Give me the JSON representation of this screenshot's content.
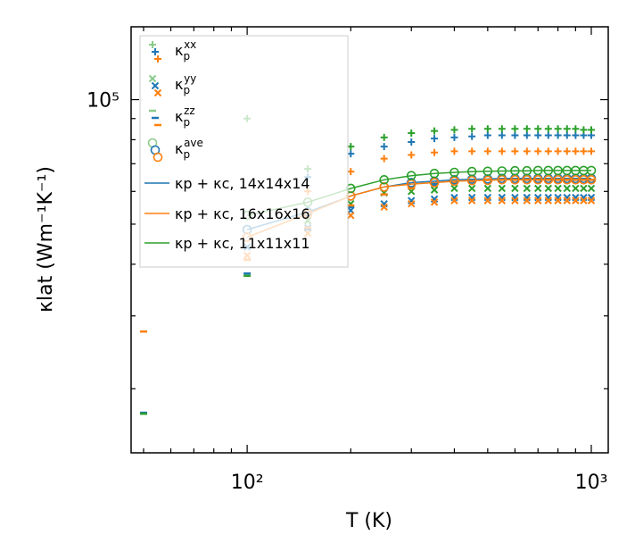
{
  "chart_data": {
    "type": "scatter",
    "x_scale": "log",
    "y_scale": "log",
    "xlim": [
      46,
      1120
    ],
    "ylim": [
      14000,
      150000
    ],
    "xlabel": "T (K)",
    "ylabel": "κlat (Wm⁻¹K⁻¹)",
    "x_ticks": [
      {
        "value": 100,
        "label": "10²"
      },
      {
        "value": 1000,
        "label": "10³"
      }
    ],
    "y_ticks": [
      {
        "value": 100000,
        "label": "10⁵"
      }
    ],
    "x": [
      50,
      100,
      150,
      200,
      250,
      300,
      350,
      400,
      450,
      500,
      550,
      600,
      650,
      700,
      750,
      800,
      850,
      900,
      950,
      1000
    ],
    "colors": {
      "blue": "#1f77b4",
      "orange": "#ff7f0e",
      "green": "#2ca02c"
    },
    "legend": {
      "location": "upper left",
      "entries": [
        {
          "label": "κp^xx",
          "kind": "plus"
        },
        {
          "label": "κp^yy",
          "kind": "x"
        },
        {
          "label": "κp^zz",
          "kind": "minus"
        },
        {
          "label": "κp^ave",
          "kind": "circle"
        },
        {
          "label": "κp + κc, 14x14x14",
          "kind": "line",
          "color": "blue"
        },
        {
          "label": "κp + κc, 16x16x16",
          "kind": "line",
          "color": "orange"
        },
        {
          "label": "κp + κc, 11x11x11",
          "kind": "line",
          "color": "green"
        }
      ]
    },
    "series": [
      {
        "name": "kp_xx 14x14x14",
        "marker": "plus",
        "color": "blue",
        "values": [
          null,
          null,
          65000,
          74000,
          77000,
          79000,
          80500,
          81000,
          81500,
          82000,
          82000,
          82000,
          82000,
          82000,
          82000,
          82000,
          82000,
          82000,
          82000,
          82000
        ]
      },
      {
        "name": "kp_xx 16x16x16",
        "marker": "plus",
        "color": "orange",
        "values": [
          null,
          null,
          60000,
          67000,
          72000,
          73500,
          74500,
          75000,
          75000,
          75000,
          75000,
          75000,
          75000,
          75000,
          75000,
          75000,
          75000,
          75000,
          75000,
          75000
        ]
      },
      {
        "name": "kp_xx 11x11x11",
        "marker": "plus",
        "color": "green",
        "values": [
          null,
          90000,
          68000,
          77000,
          81000,
          83000,
          84000,
          84500,
          85000,
          85000,
          85000,
          85000,
          85000,
          85000,
          85000,
          85000,
          85000,
          85000,
          84500,
          84500
        ]
      },
      {
        "name": "kp_yy 14x14x14",
        "marker": "x",
        "color": "blue",
        "values": [
          null,
          44000,
          49000,
          54000,
          56000,
          57000,
          57500,
          58000,
          58000,
          58000,
          58000,
          58000,
          58000,
          58000,
          58000,
          58000,
          58000,
          58000,
          58000,
          58000
        ]
      },
      {
        "name": "kp_yy 16x16x16",
        "marker": "x",
        "color": "orange",
        "values": [
          null,
          42000,
          47500,
          52500,
          55000,
          56000,
          56500,
          57000,
          57000,
          57000,
          57000,
          57000,
          57000,
          57000,
          57000,
          57000,
          57000,
          57000,
          57000,
          57000
        ]
      },
      {
        "name": "kp_yy 11x11x11",
        "marker": "x",
        "color": "green",
        "values": [
          null,
          null,
          51000,
          56000,
          59500,
          60000,
          60500,
          61000,
          61000,
          61000,
          61000,
          61000,
          61000,
          61000,
          61000,
          61000,
          61000,
          61000,
          61000,
          61000
        ]
      },
      {
        "name": "kp_zz 14x14x14",
        "marker": "minus",
        "color": "blue",
        "values": [
          17500,
          38000,
          48500,
          55000,
          59000,
          61500,
          62500,
          63000,
          63500,
          64000,
          64000,
          64000,
          64000,
          64000,
          64000,
          64000,
          64000,
          64000,
          64000,
          64000
        ]
      },
      {
        "name": "kp_zz 16x16x16",
        "marker": "minus",
        "color": "orange",
        "values": [
          27500,
          41000,
          49000,
          55500,
          59000,
          61000,
          62000,
          63000,
          63500,
          64000,
          64000,
          64000,
          64000,
          64000,
          64000,
          64000,
          64000,
          64000,
          64000,
          64000
        ]
      },
      {
        "name": "kp_zz 11x11x11",
        "marker": "minus",
        "color": "green",
        "values": [
          17400,
          37500,
          null,
          null,
          null,
          null,
          null,
          null,
          null,
          null,
          null,
          null,
          null,
          null,
          null,
          null,
          null,
          null,
          null,
          null
        ]
      },
      {
        "name": "kp_ave 14x14x14",
        "marker": "circle",
        "color": "blue",
        "values": [
          null,
          48500,
          53500,
          58500,
          61500,
          63000,
          63500,
          64000,
          64200,
          64300,
          64500,
          64500,
          64500,
          64500,
          64500,
          64500,
          64500,
          64500,
          64500,
          64500
        ]
      },
      {
        "name": "kp_ave 16x16x16",
        "marker": "circle",
        "color": "orange",
        "values": [
          null,
          46500,
          53000,
          58500,
          61500,
          62500,
          63000,
          63500,
          63700,
          63800,
          64000,
          64000,
          64000,
          64000,
          64000,
          64000,
          64000,
          64000,
          64000,
          64000
        ]
      },
      {
        "name": "kp_ave 11x11x11",
        "marker": "circle",
        "color": "green",
        "values": [
          null,
          52500,
          56500,
          61000,
          64000,
          65500,
          66300,
          66700,
          67000,
          67100,
          67200,
          67300,
          67300,
          67400,
          67400,
          67400,
          67400,
          67400,
          67400,
          67400
        ]
      },
      {
        "name": "kp + kc, 14x14x14",
        "marker": "line",
        "color": "blue",
        "values": [
          null,
          48500,
          53500,
          58500,
          61500,
          63000,
          63500,
          64000,
          64200,
          64300,
          64500,
          64500,
          64500,
          64500,
          64500,
          64500,
          64500,
          64500,
          64500,
          64500
        ]
      },
      {
        "name": "kp + kc, 16x16x16",
        "marker": "line",
        "color": "orange",
        "values": [
          null,
          46500,
          53000,
          58500,
          61500,
          62500,
          63000,
          63500,
          63700,
          63800,
          64000,
          64000,
          64000,
          64000,
          64000,
          64000,
          64000,
          64000,
          64000,
          64000
        ]
      },
      {
        "name": "kp + kc, 11x11x11",
        "marker": "line",
        "color": "green",
        "values": [
          null,
          52500,
          56500,
          61000,
          64000,
          65500,
          66300,
          66700,
          67000,
          67100,
          67200,
          67300,
          67300,
          67400,
          67400,
          67400,
          67400,
          67400,
          67400,
          67400
        ]
      }
    ]
  }
}
